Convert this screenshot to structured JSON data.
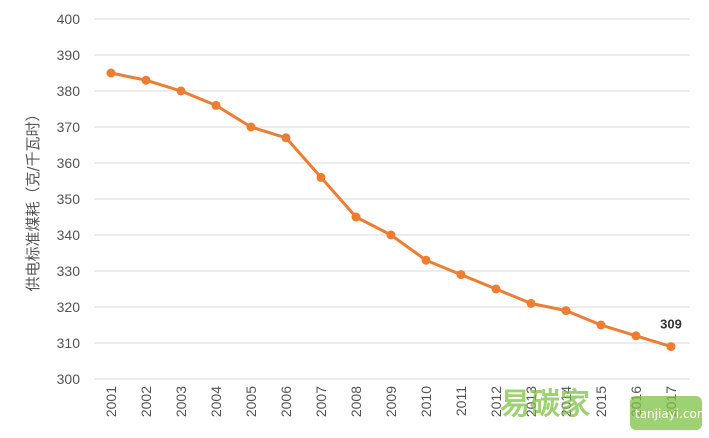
{
  "chart_data": {
    "type": "line",
    "title": "",
    "xlabel": "",
    "ylabel": "供电标准煤耗（克/千瓦时）",
    "categories": [
      "2001",
      "2002",
      "2003",
      "2004",
      "2005",
      "2006",
      "2007",
      "2008",
      "2009",
      "2010",
      "2011",
      "2012",
      "2013",
      "2014",
      "2015",
      "2016",
      "2017"
    ],
    "series": [
      {
        "values": [
          385,
          383,
          380,
          376,
          370,
          367,
          356,
          345,
          340,
          333,
          329,
          325,
          321,
          319,
          315,
          312,
          309
        ]
      }
    ],
    "ylim": [
      300,
      400
    ],
    "yticks": [
      300,
      310,
      320,
      330,
      340,
      350,
      360,
      370,
      380,
      390,
      400
    ],
    "grid": true,
    "legend": "none",
    "line_color": "#ed7d31",
    "data_labels": [
      {
        "index": 16,
        "text": "309"
      }
    ]
  },
  "watermark": {
    "brand": "易碳家",
    "site": "tanjiayi.com",
    "color": "#7dc242"
  }
}
